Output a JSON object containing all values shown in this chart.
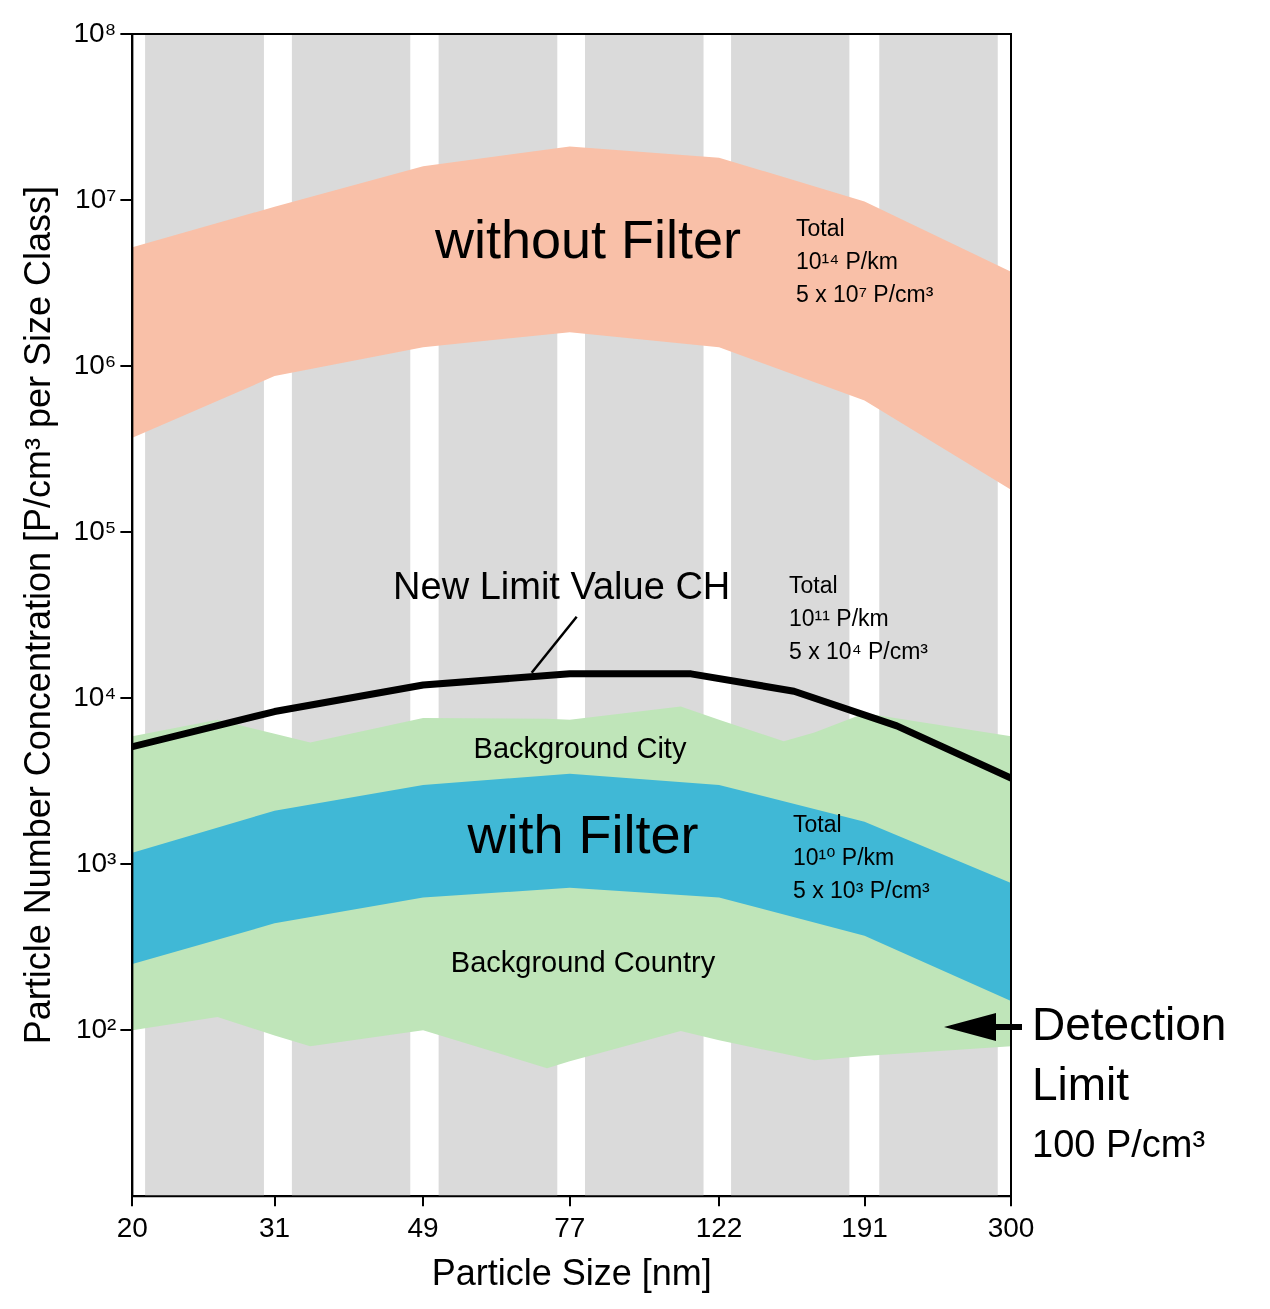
{
  "chart_data": {
    "type": "area",
    "log": "xy",
    "xlabel": "Particle Size [nm]",
    "ylabel": "Particle Number Concentration [P/cm³ per Size Class]",
    "xlim": [
      20,
      300
    ],
    "xticks": [
      20,
      31,
      49,
      77,
      122,
      191,
      300
    ],
    "ylim": [
      10,
      100000000
    ],
    "yticks": [
      {
        "value": 100,
        "label": "10²"
      },
      {
        "value": 1000,
        "label": "10³"
      },
      {
        "value": 10000,
        "label": "10⁴"
      },
      {
        "value": 100000,
        "label": "10⁵"
      },
      {
        "value": 1000000,
        "label": "10⁶"
      },
      {
        "value": 10000000,
        "label": "10⁷"
      },
      {
        "value": 100000000,
        "label": "10⁸"
      }
    ],
    "grid": false,
    "legend": false,
    "marker": "none",
    "bands": [
      {
        "axis": "x",
        "from": 20.8,
        "to": 30.0,
        "color": "#dadada"
      },
      {
        "axis": "x",
        "from": 32.7,
        "to": 47.1,
        "color": "#dadada"
      },
      {
        "axis": "x",
        "from": 51.4,
        "to": 74.1,
        "color": "#dadada"
      },
      {
        "axis": "x",
        "from": 80.7,
        "to": 116.3,
        "color": "#dadada"
      },
      {
        "axis": "x",
        "from": 126.6,
        "to": 182.3,
        "color": "#dadada"
      },
      {
        "axis": "x",
        "from": 199.9,
        "to": 288,
        "color": "#dadada"
      }
    ],
    "series": [
      {
        "color": "#f9c0a8",
        "x": [
          20,
          31,
          49,
          77,
          122,
          191,
          300
        ],
        "values": [
          null,
          null,
          null,
          null,
          null,
          null,
          null
        ],
        "upper": [
          5200000,
          9100000,
          16000000,
          21000000,
          18000000,
          9800000,
          3700000
        ],
        "lower": [
          370000,
          870000,
          1300000,
          1600000,
          1300000,
          620000,
          180000
        ]
      },
      {
        "color": "#bfe5b9",
        "x": [
          20,
          26,
          31,
          34.6,
          49,
          71.8,
          77,
          108.4,
          122,
          148.9,
          163.7,
          191,
          300
        ],
        "values": [
          null,
          null,
          null,
          null,
          null,
          null,
          null,
          null,
          null,
          null,
          null,
          null,
          null
        ],
        "upper": [
          5900,
          7400,
          6100,
          5400,
          7600,
          7500,
          7400,
          8900,
          7400,
          5500,
          6200,
          8100,
          5900
        ],
        "lower": [
          100,
          120,
          93,
          80,
          100,
          59,
          65,
          99,
          87,
          72,
          66,
          70,
          80
        ]
      },
      {
        "color": "#40b8d6",
        "x": [
          20,
          31,
          49,
          77,
          122,
          191,
          300
        ],
        "values": [
          null,
          null,
          null,
          null,
          null,
          null,
          null
        ],
        "upper": [
          1170,
          2100,
          3000,
          3500,
          3000,
          1800,
          770
        ],
        "lower": [
          250,
          440,
          630,
          720,
          630,
          370,
          150
        ]
      },
      {
        "name": "New Limit Value CH",
        "type": "line",
        "color": "#000000",
        "x": [
          20,
          31,
          49,
          77,
          111.9,
          153.7,
          211,
          300
        ],
        "values": [
          5100,
          8300,
          12000,
          14000,
          14000,
          11000,
          6800,
          3300
        ]
      }
    ],
    "annotations": [
      "Total\n10¹⁴ P/km\n5 x 10⁷ P/cm³",
      "Total\n10¹¹ P/km\n5 x 10⁴ P/cm³",
      "Total\n10¹⁰ P/km\n5 x 10³ P/cm³",
      "Detection\nLimit\n100 P/cm³",
      "Background City",
      "Background Country",
      "without Filter",
      "with Filter"
    ]
  }
}
